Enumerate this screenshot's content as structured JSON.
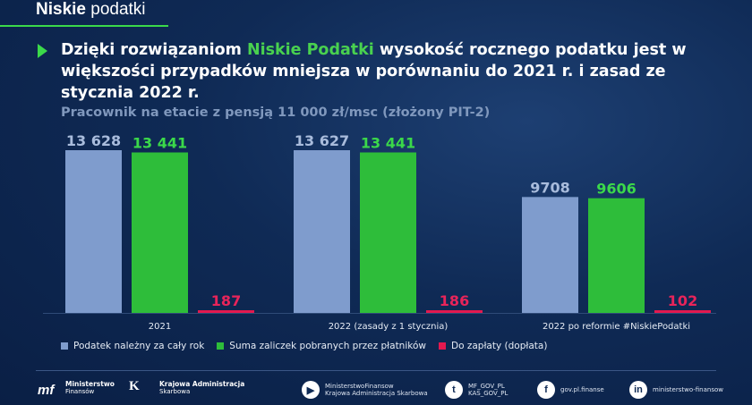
{
  "brand": {
    "bold": "Niskie",
    "regular": "podatki"
  },
  "headline": {
    "part1": "Dzięki rozwiązaniom ",
    "highlight": "Niskie Podatki",
    "part2": " wysokość rocznego podatku jest w większości przypadków mniejsza w porównaniu do 2021 r. i zasad ze stycznia 2022 r."
  },
  "colors": {
    "series1": "#7f9ccd",
    "series2": "#2ebd3a",
    "series3": "#e3194f",
    "accent": "#3bd94a"
  },
  "chart_data": {
    "type": "bar",
    "title": "Pracownik na etacie z pensją 11 000 zł/msc (złożony PIT-2)",
    "categories": [
      "2021",
      "2022 (zasady z 1 stycznia)",
      "2022 po reformie #NiskiePodatki"
    ],
    "series": [
      {
        "name": "Podatek należny za cały rok",
        "values": [
          13628,
          13627,
          9708
        ],
        "labels": [
          "13 628",
          "13 627",
          "9708"
        ]
      },
      {
        "name": "Suma zaliczek pobranych przez płatników",
        "values": [
          13441,
          13441,
          9606
        ],
        "labels": [
          "13 441",
          "13 441",
          "9606"
        ]
      },
      {
        "name": "Do zapłaty (dopłata)",
        "values": [
          187,
          186,
          102
        ],
        "labels": [
          "187",
          "186",
          "102"
        ]
      }
    ],
    "ylim": [
      0,
      13628
    ],
    "legend": "bottom-left",
    "grid": false
  },
  "footer": {
    "mf_line1": "Ministerstwo",
    "mf_line2": "Finansów",
    "kas_line1": "Krajowa Administracja",
    "kas_line2": "Skarbowa",
    "youtube_line1": "MinisterstwoFinansow",
    "youtube_line2": "Krajowa Administracja Skarbowa",
    "twitter_line1": "MF_GOV_PL",
    "twitter_line2": "KAS_GOV_PL",
    "facebook": "gov.pl.finanse",
    "linkedin": "ministerstwo-finansow"
  }
}
